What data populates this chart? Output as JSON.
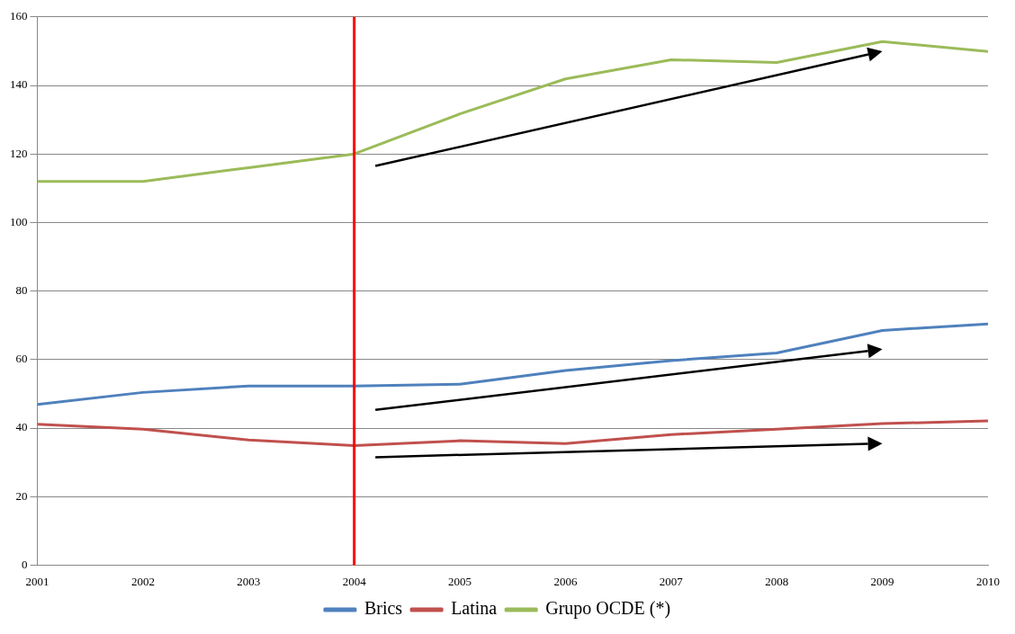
{
  "chart_data": {
    "type": "line",
    "x": [
      2001,
      2002,
      2003,
      2004,
      2005,
      2006,
      2007,
      2008,
      2009,
      2010
    ],
    "xlim": [
      2001,
      2010
    ],
    "xticks": [
      2001,
      2002,
      2003,
      2004,
      2005,
      2006,
      2007,
      2008,
      2009,
      2010
    ],
    "ylim": [
      0,
      160
    ],
    "yticks": [
      0,
      20,
      40,
      60,
      80,
      100,
      120,
      140,
      160
    ],
    "grid": "y",
    "legend": "bottom",
    "marker": "none",
    "series": [
      {
        "name": "Brics",
        "color": "#4f81bd",
        "values": [
          46.9,
          50.4,
          52.3,
          52.3,
          52.8,
          56.8,
          59.7,
          61.9,
          68.5,
          70.4
        ]
      },
      {
        "name": "Latina",
        "color": "#c0504d",
        "values": [
          41.1,
          39.7,
          36.5,
          34.9,
          36.3,
          35.5,
          38.1,
          39.7,
          41.3,
          42.1
        ]
      },
      {
        "name": "Grupo OCDE (*)",
        "color": "#9bbb59",
        "values": [
          112,
          112,
          116,
          120,
          131.7,
          141.9,
          147.5,
          146.7,
          152.8,
          149.9
        ]
      }
    ],
    "ref_lines": [
      {
        "axis": "x",
        "value": 2004,
        "color": "#ff0000"
      }
    ]
  }
}
